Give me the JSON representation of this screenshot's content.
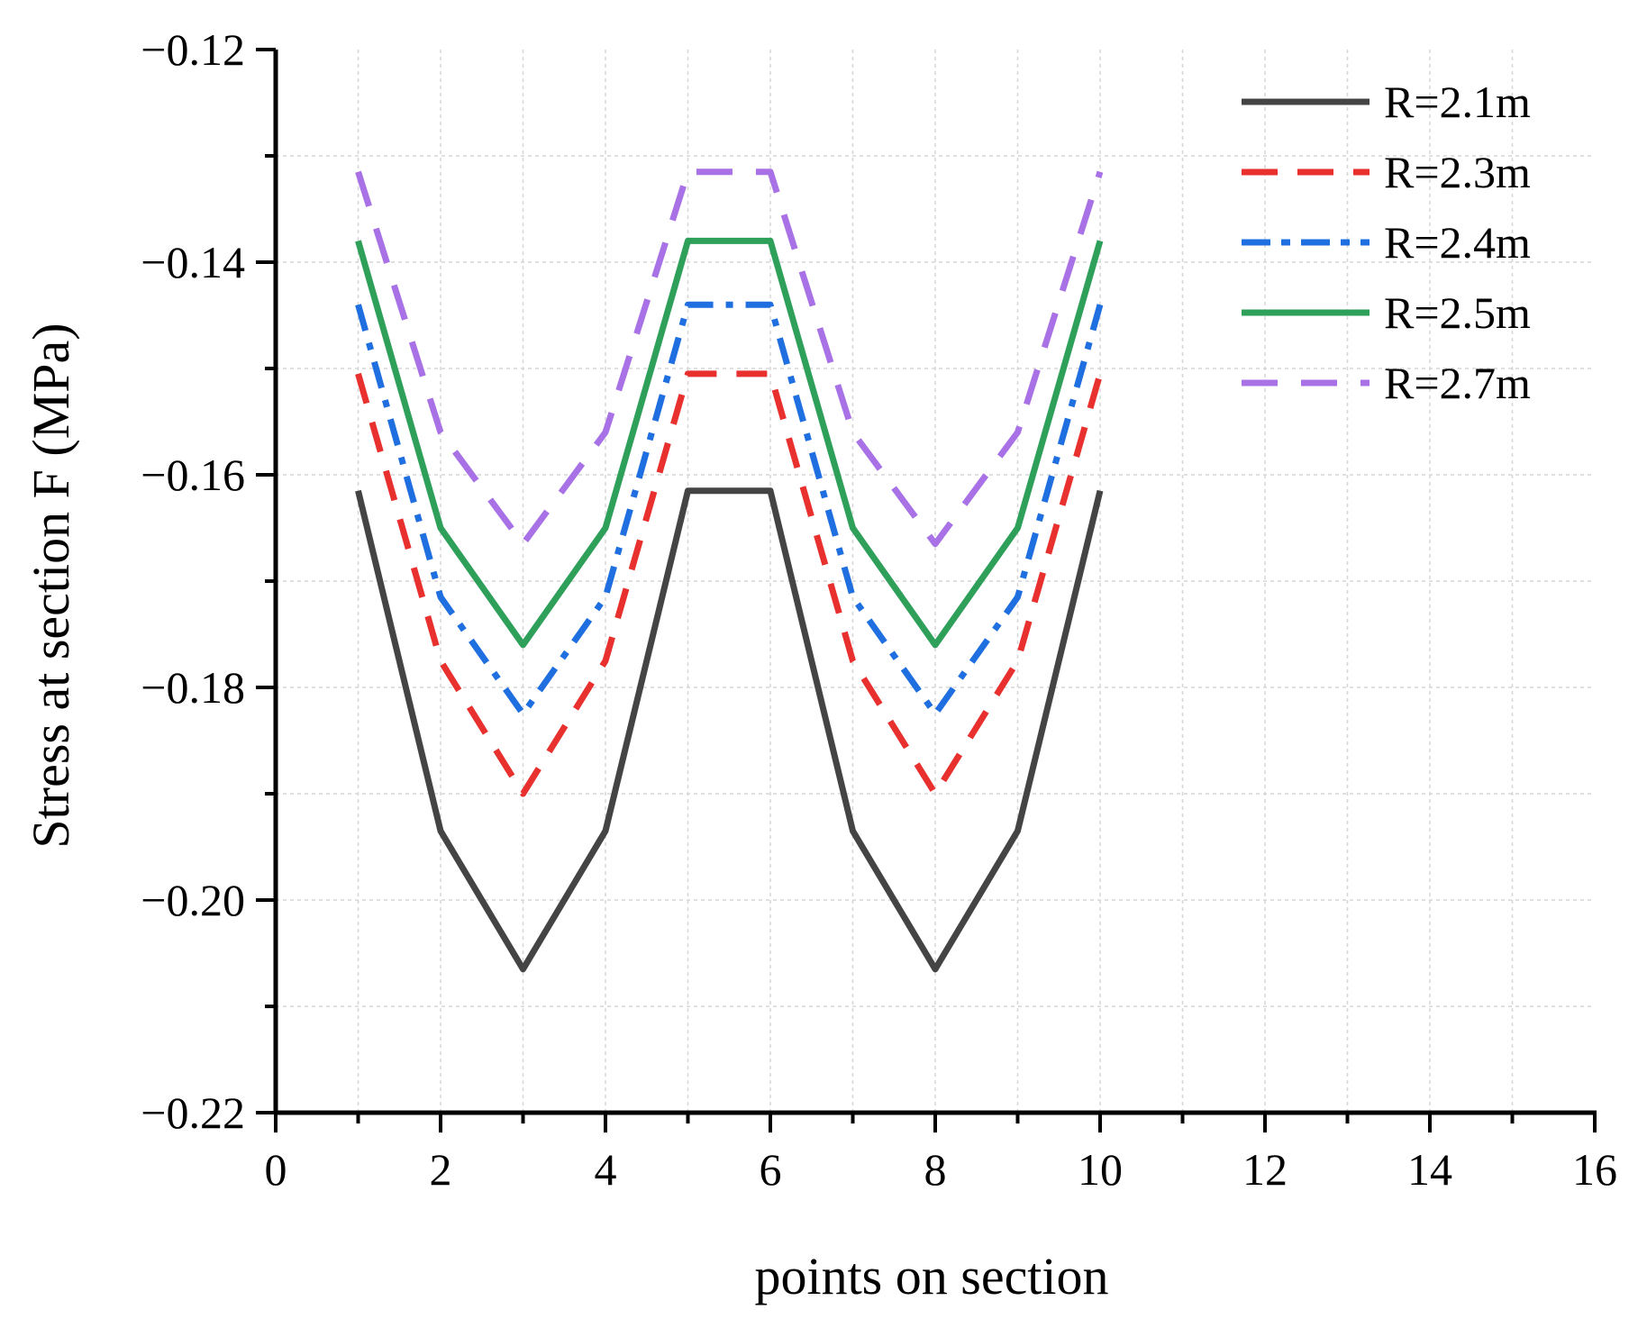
{
  "chart_data": {
    "type": "line",
    "title": "",
    "xlabel": "points on section",
    "ylabel": "Stress at section F (MPa)",
    "xlim": [
      0,
      16
    ],
    "ylim": [
      -0.22,
      -0.12
    ],
    "x_ticks": [
      0,
      2,
      4,
      6,
      8,
      10,
      12,
      14,
      16
    ],
    "x_tick_labels": [
      "0",
      "2",
      "4",
      "6",
      "8",
      "10",
      "12",
      "14",
      "16"
    ],
    "y_ticks": [
      -0.22,
      -0.2,
      -0.18,
      -0.16,
      -0.14,
      -0.12
    ],
    "y_tick_labels": [
      "−0.22",
      "−0.20",
      "−0.18",
      "−0.16",
      "−0.14",
      "−0.12"
    ],
    "grid": true,
    "legend_position": "top-right",
    "x": [
      1,
      2,
      3,
      4,
      5,
      6,
      7,
      8,
      9,
      10
    ],
    "series": [
      {
        "name": "R=2.1m",
        "color": "#444444",
        "style": "solid",
        "values": [
          -0.1615,
          -0.1935,
          -0.2065,
          -0.1935,
          -0.1615,
          -0.1615,
          -0.1935,
          -0.2065,
          -0.1935,
          -0.1615
        ]
      },
      {
        "name": "R=2.3m",
        "color": "#e8312f",
        "style": "dash",
        "values": [
          -0.1505,
          -0.1775,
          -0.19,
          -0.1775,
          -0.1505,
          -0.1505,
          -0.1775,
          -0.19,
          -0.1775,
          -0.1505
        ]
      },
      {
        "name": "R=2.4m",
        "color": "#1f6fe0",
        "style": "dashdot",
        "values": [
          -0.144,
          -0.1715,
          -0.1825,
          -0.1715,
          -0.144,
          -0.144,
          -0.1715,
          -0.1825,
          -0.1715,
          -0.144
        ]
      },
      {
        "name": "R=2.5m",
        "color": "#2fa05a",
        "style": "solid",
        "values": [
          -0.138,
          -0.165,
          -0.176,
          -0.165,
          -0.138,
          -0.138,
          -0.165,
          -0.176,
          -0.165,
          -0.138
        ]
      },
      {
        "name": "R=2.7m",
        "color": "#a872e6",
        "style": "longdash",
        "values": [
          -0.1315,
          -0.156,
          -0.1665,
          -0.156,
          -0.1315,
          -0.1315,
          -0.156,
          -0.1665,
          -0.156,
          -0.1315
        ]
      }
    ]
  }
}
